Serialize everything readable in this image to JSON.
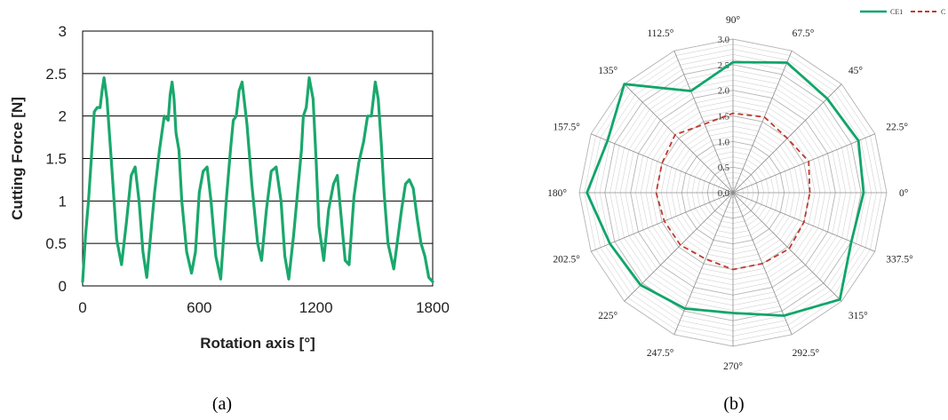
{
  "panel_a": {
    "caption": "(a)",
    "ylabel": "Cutting Force [N]",
    "xlabel": "Rotation axis [°]",
    "y_ticks": [
      "0",
      "0.5",
      "1",
      "1.5",
      "2",
      "2.5",
      "3"
    ],
    "x_ticks": [
      "0",
      "600",
      "1200",
      "1800"
    ],
    "colors": {
      "series": "#1aa86c",
      "grid": "#000000"
    }
  },
  "panel_b": {
    "caption": "(b)",
    "angle_labels": [
      "0°",
      "22.5°",
      "45°",
      "67.5°",
      "90°",
      "112.5°",
      "135°",
      "157.5°",
      "180°",
      "202.5°",
      "225°",
      "247.5°",
      "270°",
      "292.5°",
      "315°",
      "337.5°"
    ],
    "radial_ticks": [
      "0.0",
      "0.5",
      "1.0",
      "1.5",
      "2.0",
      "2.5",
      "3.0"
    ],
    "legend": [
      "CE1",
      "C"
    ],
    "colors": {
      "ce1": "#0fa56a",
      "c": "#c0392b",
      "grid": "#c8c8c8"
    }
  },
  "chart_data": [
    {
      "type": "line",
      "title": "",
      "xlabel": "Rotation axis [°]",
      "ylabel": "Cutting Force [N]",
      "xlim": [
        0,
        1800
      ],
      "ylim": [
        0,
        3
      ],
      "grid": "horizontal",
      "series": [
        {
          "x": [
            0,
            15,
            30,
            45,
            60,
            75,
            90,
            100,
            110,
            125,
            150,
            175,
            200,
            225,
            250,
            270,
            290,
            310,
            330,
            350,
            370,
            395,
            420,
            440,
            450,
            460,
            470,
            480,
            495,
            510,
            535,
            560,
            580,
            600,
            620,
            640,
            660,
            685,
            710,
            740,
            760,
            775,
            790,
            805,
            820,
            845,
            870,
            900,
            920,
            945,
            970,
            995,
            1020,
            1040,
            1060,
            1085,
            1105,
            1125,
            1135,
            1150,
            1165,
            1185,
            1200,
            1215,
            1240,
            1265,
            1290,
            1310,
            1330,
            1350,
            1370,
            1395,
            1420,
            1445,
            1465,
            1485,
            1505,
            1520,
            1535,
            1550,
            1570,
            1600,
            1620,
            1640,
            1660,
            1680,
            1700,
            1720,
            1740,
            1760,
            1780,
            1800
          ],
          "values": [
            0.05,
            0.6,
            1.0,
            1.5,
            2.05,
            2.1,
            2.1,
            2.3,
            2.45,
            2.2,
            1.4,
            0.55,
            0.25,
            0.75,
            1.3,
            1.4,
            1.0,
            0.4,
            0.1,
            0.6,
            1.1,
            1.6,
            2.0,
            1.95,
            2.25,
            2.4,
            2.2,
            1.8,
            1.6,
            1.0,
            0.4,
            0.15,
            0.4,
            1.1,
            1.35,
            1.4,
            1.0,
            0.35,
            0.08,
            1.05,
            1.6,
            1.95,
            2.0,
            2.3,
            2.4,
            1.9,
            1.2,
            0.5,
            0.3,
            0.9,
            1.35,
            1.4,
            1.0,
            0.35,
            0.08,
            0.6,
            1.1,
            1.6,
            2.0,
            2.1,
            2.45,
            2.2,
            1.5,
            0.7,
            0.3,
            0.9,
            1.2,
            1.3,
            0.8,
            0.3,
            0.25,
            1.05,
            1.45,
            1.7,
            2.0,
            2.0,
            2.4,
            2.2,
            1.7,
            1.1,
            0.5,
            0.2,
            0.55,
            0.9,
            1.2,
            1.25,
            1.15,
            0.8,
            0.5,
            0.35,
            0.1,
            0.05
          ]
        }
      ]
    },
    {
      "type": "radar",
      "title": "",
      "angles_deg": [
        0,
        22.5,
        45,
        67.5,
        90,
        112.5,
        135,
        157.5,
        180,
        202.5,
        225,
        247.5,
        270,
        292.5,
        315,
        337.5
      ],
      "rlim": [
        0,
        3
      ],
      "series": [
        {
          "name": "CE1",
          "values": [
            2.55,
            2.65,
            2.6,
            2.75,
            2.55,
            2.15,
            3.0,
            2.65,
            2.85,
            2.6,
            2.55,
            2.45,
            2.35,
            2.6,
            2.95,
            2.5
          ]
        },
        {
          "name": "C",
          "values": [
            1.5,
            1.6,
            1.5,
            1.6,
            1.55,
            1.45,
            1.6,
            1.5,
            1.5,
            1.45,
            1.45,
            1.4,
            1.5,
            1.5,
            1.55,
            1.5
          ]
        }
      ]
    }
  ]
}
